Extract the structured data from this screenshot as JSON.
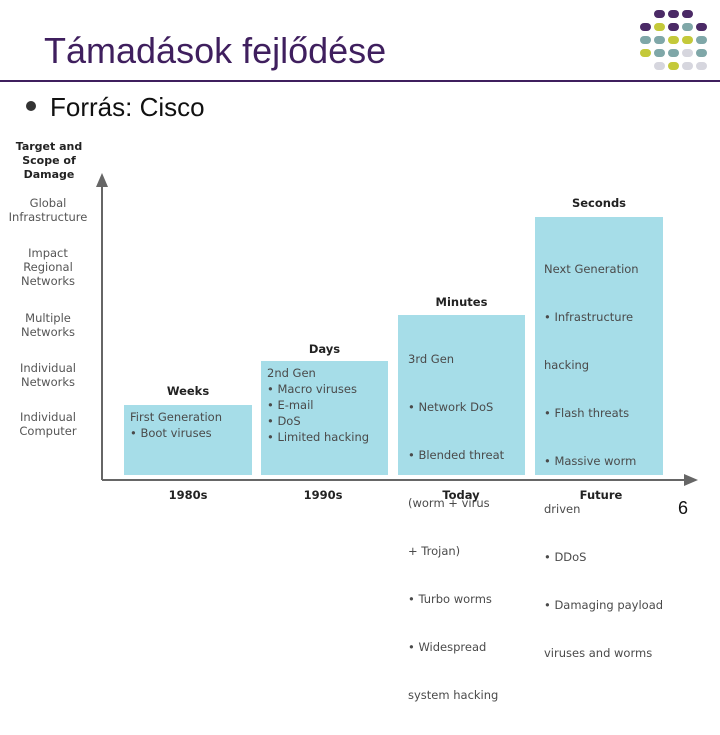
{
  "slide": {
    "title": "Támadások fejlődése",
    "bullet": "Forrás: Cisco",
    "page_number": "6"
  },
  "diagram": {
    "y_axis_title": [
      "Target and",
      "Scope of Damage"
    ],
    "y_levels": [
      [
        "Global",
        "Infrastructure"
      ],
      [
        "Impact",
        "Regional",
        "Networks"
      ],
      [
        "Multiple",
        "Networks"
      ],
      [
        "Individual",
        "Networks"
      ],
      [
        "Individual",
        "Computer"
      ]
    ],
    "x_labels": [
      "1980s",
      "1990s",
      "Today",
      "Future"
    ],
    "boxes": [
      {
        "heading": "Weeks",
        "lines": [
          "First Generation",
          "• Boot viruses"
        ]
      },
      {
        "heading": "Days",
        "lines": [
          "2nd Gen",
          "• Macro viruses",
          "• E-mail",
          "• DoS",
          "• Limited hacking"
        ]
      },
      {
        "heading": "Minutes",
        "lines": [
          "3rd Gen",
          "• Network DoS",
          "• Blended threat",
          "  (worm + virus",
          "   + Trojan)",
          "• Turbo worms",
          "• Widespread",
          "  system hacking"
        ]
      },
      {
        "heading": "Seconds",
        "lines": [
          "Next Generation",
          "• Infrastructure",
          "  hacking",
          "• Flash threats",
          "• Massive worm",
          "  driven",
          "• DDoS",
          "• Damaging payload",
          "  viruses and worms"
        ]
      }
    ],
    "colors": {
      "box": "#a6dde8",
      "title": "#3f1f5e"
    }
  }
}
